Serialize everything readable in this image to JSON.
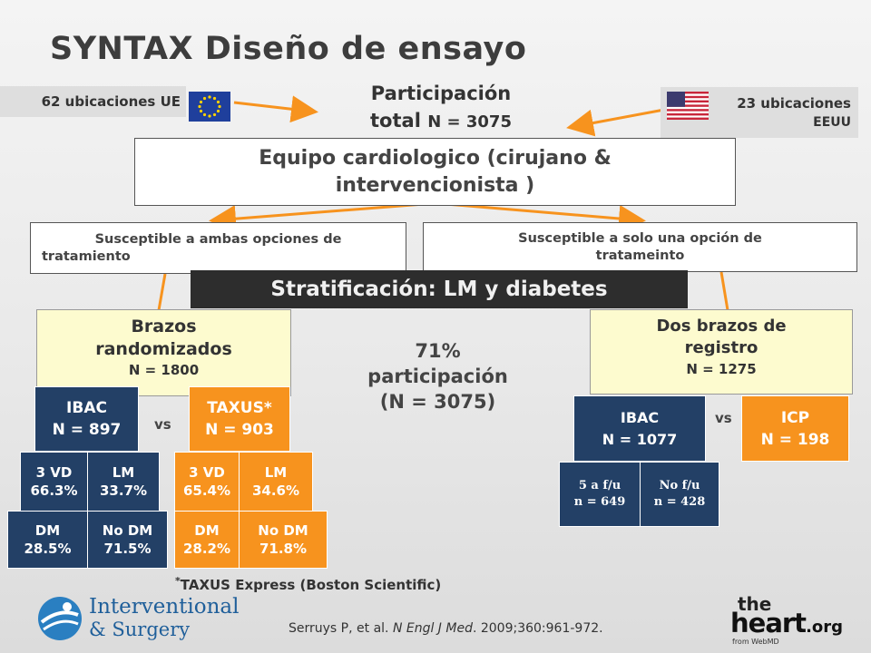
{
  "title": "SYNTAX Diseño de ensayo",
  "eu_sites": "62 ubicaciones UE",
  "us_sites_line1": "23 ubicaciones",
  "us_sites_line2": "EEUU",
  "participation_line1": "Participación",
  "participation_line2": "total",
  "participation_n": "N = 3075",
  "team_line1": "Equipo cardiologico (cirujano &",
  "team_line2": "intervencionista )",
  "both_options_line1": "Susceptible a ambas opciones de",
  "both_options_line2": "tratamiento",
  "one_option_line1": "Susceptible a solo una opción de",
  "one_option_line2": "tratameinto",
  "stratification": "Stratificación: LM y diabetes",
  "randomized": {
    "label_line1": "Brazos",
    "label_line2": "randomizados",
    "n": "N = 1800",
    "vs": "vs",
    "ibac": {
      "name": "IBAC",
      "n": "N = 897"
    },
    "taxus": {
      "name": "TAXUS*",
      "n": "N = 903"
    },
    "ibac_split": [
      {
        "l1": "3 VD",
        "l2": "66.3%"
      },
      {
        "l1": "LM",
        "l2": "33.7%"
      },
      {
        "l1": "DM",
        "l2": "28.5%"
      },
      {
        "l1": "No DM",
        "l2": "71.5%"
      }
    ],
    "taxus_split": [
      {
        "l1": "3 VD",
        "l2": "65.4%"
      },
      {
        "l1": "LM",
        "l2": "34.6%"
      },
      {
        "l1": "DM",
        "l2": "28.2%"
      },
      {
        "l1": "No DM",
        "l2": "71.8%"
      }
    ]
  },
  "participation71": {
    "line1": "71%",
    "line2": "participación",
    "line3": "(N = 3075)"
  },
  "registry": {
    "label_line1": "Dos brazos de",
    "label_line2": "registro",
    "n": "N = 1275",
    "vs": "vs",
    "ibac": {
      "name": "IBAC",
      "n": "N = 1077"
    },
    "icp": {
      "name": "ICP",
      "n": "N = 198"
    },
    "followup": [
      {
        "l1": "5 a f/u",
        "l2": "n = 649"
      },
      {
        "l1": "No f/u",
        "l2": "n = 428"
      }
    ]
  },
  "footnote_mark": "*",
  "footnote": "TAXUS Express (Boston Scientific)",
  "citation_pre": "Serruys P, et al. ",
  "citation_journal": "N Engl J Med",
  "citation_post": ". 2009;360:961-972.",
  "logo_interventional": {
    "line1": "Interventional",
    "line2": "& Surgery"
  },
  "logo_heart": {
    "the": "the",
    "heart": "heart",
    "org": ".org",
    "from": "from WebMD"
  },
  "colors": {
    "blue": "#234066",
    "orange": "#f7931e",
    "yellow": "#fdfbcf",
    "arrow": "#f7931e"
  }
}
